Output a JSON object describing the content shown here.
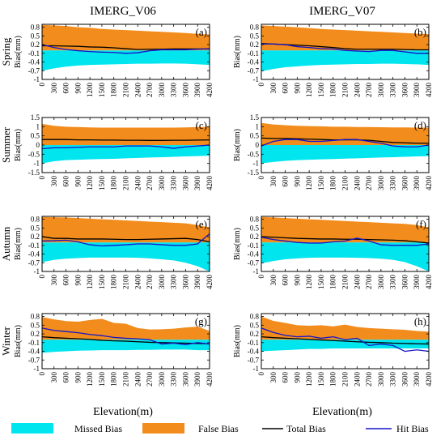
{
  "chart_data": {
    "type": "area",
    "column_titles": [
      "IMERG_V06",
      "IMERG_V07"
    ],
    "row_labels": [
      "Spring",
      "Summer",
      "Autumn",
      "Winter"
    ],
    "ylabel": "Bias(mm)",
    "xlabel": "Elevation(m)",
    "x": [
      0,
      300,
      600,
      900,
      1200,
      1500,
      1800,
      2100,
      2400,
      2700,
      3000,
      3300,
      3600,
      3900,
      4200
    ],
    "x_ticks": [
      "0",
      "300",
      "600",
      "900",
      "1200",
      "1500",
      "1800",
      "2100",
      "2400",
      "2700",
      "3000",
      "3300",
      "3600",
      "3900",
      "4200"
    ],
    "colors": {
      "missed": "#00e5ee",
      "false": "#f28c1c",
      "total": "#000000",
      "hit": "#1515c8"
    },
    "legend": [
      {
        "label": "Missed Bias",
        "kind": "patch",
        "color": "#00e5ee"
      },
      {
        "label": "False Bias",
        "kind": "patch",
        "color": "#f28c1c"
      },
      {
        "label": "Total Bias",
        "kind": "line",
        "color": "#000000"
      },
      {
        "label": "Hit Bias",
        "kind": "line",
        "color": "#1515c8"
      }
    ],
    "panels": [
      {
        "label": "(a)",
        "row": 0,
        "col": 0,
        "ylim": [
          -1,
          0.9
        ],
        "yticks": [
          "0.8",
          "0.5",
          "0.2",
          "-0.1",
          "-0.4",
          "-0.7",
          "-1"
        ],
        "ytick_values": [
          0.8,
          0.5,
          0.2,
          -0.1,
          -0.4,
          -0.7,
          -1
        ],
        "series": {
          "false": [
            0.88,
            0.86,
            0.84,
            0.8,
            0.78,
            0.74,
            0.72,
            0.7,
            0.68,
            0.66,
            0.64,
            0.62,
            0.6,
            0.57,
            0.55
          ],
          "missed": [
            -0.7,
            -0.62,
            -0.56,
            -0.52,
            -0.5,
            -0.49,
            -0.48,
            -0.47,
            -0.46,
            -0.46,
            -0.45,
            -0.45,
            -0.46,
            -0.48,
            -0.5
          ],
          "total": [
            0.16,
            0.16,
            0.15,
            0.14,
            0.12,
            0.11,
            0.09,
            0.06,
            0.03,
            0.04,
            0.04,
            0.05,
            0.05,
            0.05,
            0.05
          ],
          "hit": [
            0.2,
            0.1,
            0.03,
            -0.01,
            -0.04,
            -0.06,
            -0.07,
            -0.1,
            -0.08,
            -0.01,
            0.02,
            0.02,
            0.02,
            0.04,
            0.06
          ]
        }
      },
      {
        "label": "(b)",
        "row": 0,
        "col": 1,
        "ylim": [
          -1,
          0.9
        ],
        "yticks": [
          "0.8",
          "0.5",
          "0.2",
          "-0.1",
          "-0.4",
          "-0.7",
          "-1"
        ],
        "ytick_values": [
          0.8,
          0.5,
          0.2,
          -0.1,
          -0.4,
          -0.7,
          -1
        ],
        "series": {
          "false": [
            0.86,
            0.84,
            0.82,
            0.8,
            0.77,
            0.74,
            0.72,
            0.7,
            0.68,
            0.66,
            0.64,
            0.62,
            0.6,
            0.58,
            0.56
          ],
          "missed": [
            -0.72,
            -0.64,
            -0.58,
            -0.55,
            -0.52,
            -0.5,
            -0.49,
            -0.48,
            -0.47,
            -0.47,
            -0.46,
            -0.46,
            -0.47,
            -0.48,
            -0.5
          ],
          "total": [
            0.24,
            0.22,
            0.2,
            0.18,
            0.16,
            0.13,
            0.1,
            0.06,
            0.04,
            0.04,
            0.04,
            0.04,
            0.03,
            0.02,
            0.02
          ],
          "hit": [
            0.22,
            0.22,
            0.2,
            0.13,
            0.1,
            0.06,
            0.05,
            0.0,
            -0.02,
            -0.04,
            0.0,
            0.0,
            -0.05,
            -0.1,
            -0.1
          ]
        }
      },
      {
        "label": "(c)",
        "row": 1,
        "col": 0,
        "ylim": [
          -1.5,
          1.5
        ],
        "yticks": [
          "1.5",
          "1",
          "0.5",
          "0",
          "-0.5",
          "-1",
          "-1.5"
        ],
        "ytick_values": [
          1.5,
          1,
          0.5,
          0,
          -0.5,
          -1,
          -1.5
        ],
        "series": {
          "false": [
            1.15,
            1.05,
            1.0,
            0.98,
            0.96,
            0.95,
            0.95,
            0.95,
            0.95,
            0.95,
            0.95,
            0.95,
            0.96,
            0.98,
            1.0
          ],
          "missed": [
            -1.0,
            -0.88,
            -0.82,
            -0.8,
            -0.78,
            -0.76,
            -0.75,
            -0.72,
            -0.7,
            -0.68,
            -0.66,
            -0.64,
            -0.62,
            -0.6,
            -0.58
          ],
          "total": [
            0.3,
            0.3,
            0.3,
            0.28,
            0.28,
            0.27,
            0.27,
            0.26,
            0.26,
            0.25,
            0.25,
            0.26,
            0.26,
            0.27,
            0.28
          ],
          "hit": [
            -0.2,
            -0.15,
            -0.15,
            -0.12,
            -0.1,
            -0.1,
            -0.1,
            -0.05,
            -0.05,
            -0.05,
            -0.1,
            -0.18,
            -0.1,
            -0.05,
            0.0
          ]
        }
      },
      {
        "label": "(d)",
        "row": 1,
        "col": 1,
        "ylim": [
          -1.5,
          1.5
        ],
        "yticks": [
          "1.5",
          "1",
          "0.5",
          "0",
          "-0.5",
          "-1",
          "-1.5"
        ],
        "ytick_values": [
          1.5,
          1,
          0.5,
          0,
          -0.5,
          -1,
          -1.5
        ],
        "series": {
          "false": [
            1.2,
            1.12,
            1.08,
            1.05,
            1.03,
            1.02,
            1.0,
            1.0,
            0.98,
            0.98,
            0.97,
            0.96,
            0.96,
            0.95,
            0.95
          ],
          "missed": [
            -1.0,
            -0.92,
            -0.86,
            -0.82,
            -0.8,
            -0.78,
            -0.76,
            -0.74,
            -0.72,
            -0.7,
            -0.68,
            -0.66,
            -0.64,
            -0.62,
            -0.6
          ],
          "total": [
            0.38,
            0.36,
            0.36,
            0.34,
            0.32,
            0.3,
            0.28,
            0.28,
            0.28,
            0.26,
            0.2,
            0.14,
            0.12,
            0.1,
            0.1
          ],
          "hit": [
            -0.05,
            0.2,
            0.3,
            0.3,
            0.2,
            0.2,
            0.25,
            0.3,
            0.3,
            0.2,
            0.1,
            -0.05,
            -0.1,
            -0.1,
            0.0
          ]
        }
      },
      {
        "label": "(e)",
        "row": 2,
        "col": 0,
        "ylim": [
          -1,
          0.9
        ],
        "yticks": [
          "0.8",
          "0.5",
          "0.2",
          "-0.1",
          "-0.4",
          "-0.7",
          "-1"
        ],
        "ytick_values": [
          0.8,
          0.5,
          0.2,
          -0.1,
          -0.4,
          -0.7,
          -1
        ],
        "series": {
          "false": [
            0.88,
            0.87,
            0.86,
            0.84,
            0.82,
            0.8,
            0.78,
            0.76,
            0.74,
            0.72,
            0.7,
            0.68,
            0.66,
            0.6,
            0.52
          ],
          "missed": [
            -0.68,
            -0.6,
            -0.56,
            -0.54,
            -0.52,
            -0.52,
            -0.52,
            -0.52,
            -0.53,
            -0.55,
            -0.58,
            -0.62,
            -0.7,
            -0.82,
            -1.0
          ],
          "total": [
            0.2,
            0.14,
            0.14,
            0.12,
            0.12,
            0.12,
            0.11,
            0.1,
            0.1,
            0.11,
            0.12,
            0.13,
            0.14,
            0.1,
            0.02
          ],
          "hit": [
            0.05,
            0.06,
            0.08,
            0.02,
            -0.08,
            -0.12,
            -0.1,
            -0.08,
            -0.05,
            -0.05,
            -0.08,
            -0.1,
            -0.1,
            -0.05,
            0.3
          ]
        }
      },
      {
        "label": "(f)",
        "row": 2,
        "col": 1,
        "ylim": [
          -1,
          0.9
        ],
        "yticks": [
          "0.8",
          "0.5",
          "0.2",
          "-0.1",
          "-0.4",
          "-0.7",
          "-1"
        ],
        "ytick_values": [
          0.8,
          0.5,
          0.2,
          -0.1,
          -0.4,
          -0.7,
          -1
        ],
        "series": {
          "false": [
            0.88,
            0.86,
            0.84,
            0.82,
            0.8,
            0.78,
            0.76,
            0.74,
            0.72,
            0.7,
            0.68,
            0.66,
            0.64,
            0.6,
            0.52
          ],
          "missed": [
            -0.72,
            -0.64,
            -0.58,
            -0.55,
            -0.53,
            -0.52,
            -0.52,
            -0.52,
            -0.53,
            -0.54,
            -0.56,
            -0.6,
            -0.68,
            -0.82,
            -1.0
          ],
          "total": [
            0.2,
            0.18,
            0.16,
            0.14,
            0.13,
            0.12,
            0.12,
            0.11,
            0.11,
            0.1,
            0.09,
            0.08,
            0.06,
            0.02,
            -0.02
          ],
          "hit": [
            0.18,
            0.1,
            0.05,
            0.0,
            -0.02,
            -0.02,
            0.02,
            0.05,
            0.15,
            0.05,
            -0.08,
            -0.1,
            -0.1,
            -0.1,
            -0.05
          ]
        }
      },
      {
        "label": "(g)",
        "row": 3,
        "col": 0,
        "ylim": [
          -1,
          0.9
        ],
        "yticks": [
          "0.8",
          "0.5",
          "0.2",
          "-0.1",
          "-0.4",
          "-0.7",
          "-1"
        ],
        "ytick_values": [
          0.8,
          0.5,
          0.2,
          -0.1,
          -0.4,
          -0.7,
          -1
        ],
        "series": {
          "false": [
            0.78,
            0.7,
            0.64,
            0.62,
            0.68,
            0.72,
            0.58,
            0.55,
            0.4,
            0.35,
            0.36,
            0.38,
            0.42,
            0.45,
            0.3
          ],
          "missed": [
            -0.45,
            -0.42,
            -0.4,
            -0.38,
            -0.37,
            -0.36,
            -0.36,
            -0.36,
            -0.35,
            -0.35,
            -0.34,
            -0.34,
            -0.34,
            -0.36,
            -0.36
          ],
          "total": [
            0.1,
            0.07,
            0.05,
            0.03,
            0.01,
            -0.02,
            -0.04,
            -0.05,
            -0.07,
            -0.09,
            -0.1,
            -0.11,
            -0.12,
            -0.13,
            -0.14
          ],
          "hit": [
            0.4,
            0.32,
            0.28,
            0.24,
            0.18,
            0.14,
            0.08,
            0.05,
            0.03,
            0.0,
            -0.15,
            -0.12,
            -0.17,
            -0.1,
            -0.15
          ]
        }
      },
      {
        "label": "(h)",
        "row": 3,
        "col": 1,
        "ylim": [
          -1,
          0.9
        ],
        "yticks": [
          "0.8",
          "0.5",
          "0.2",
          "-0.1",
          "-0.4",
          "-0.7",
          "-1"
        ],
        "ytick_values": [
          0.8,
          0.5,
          0.2,
          -0.1,
          -0.4,
          -0.7,
          -1
        ],
        "series": {
          "false": [
            0.8,
            0.65,
            0.58,
            0.5,
            0.48,
            0.5,
            0.46,
            0.52,
            0.44,
            0.4,
            0.38,
            0.36,
            0.34,
            0.3,
            0.28
          ],
          "missed": [
            -0.4,
            -0.38,
            -0.36,
            -0.34,
            -0.32,
            -0.32,
            -0.3,
            -0.3,
            -0.3,
            -0.3,
            -0.3,
            -0.3,
            -0.3,
            -0.3,
            -0.3
          ],
          "total": [
            0.1,
            0.07,
            0.05,
            0.03,
            0.01,
            -0.01,
            -0.03,
            -0.05,
            -0.07,
            -0.09,
            -0.1,
            -0.12,
            -0.13,
            -0.14,
            -0.15
          ],
          "hit": [
            0.4,
            0.25,
            0.15,
            0.1,
            0.12,
            0.05,
            0.1,
            0.0,
            0.05,
            -0.2,
            -0.15,
            -0.2,
            -0.4,
            -0.35,
            -0.4
          ]
        }
      }
    ]
  }
}
